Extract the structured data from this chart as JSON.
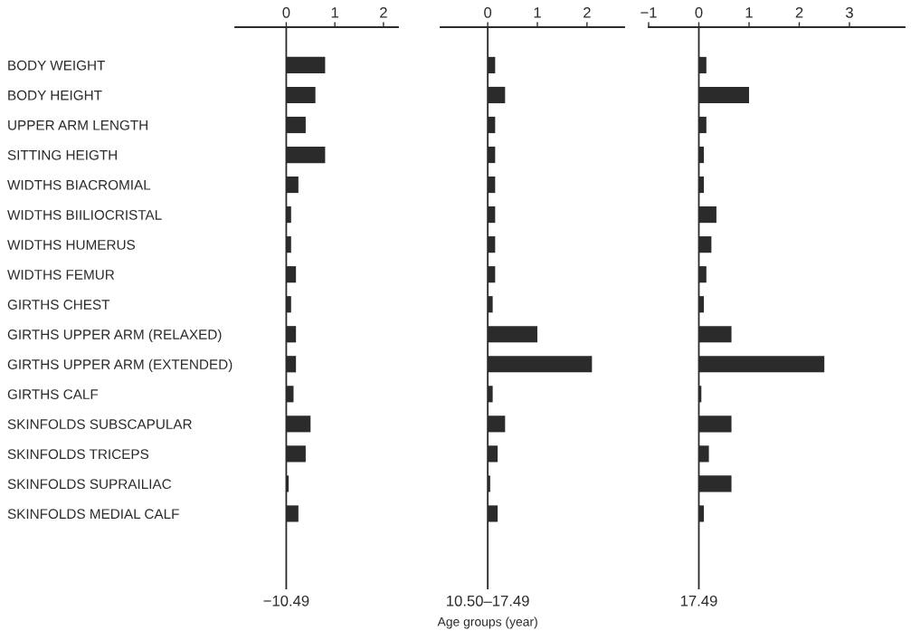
{
  "chart_data": [
    {
      "type": "bar",
      "orientation": "horizontal",
      "xlabel": "−10.49",
      "categories": [
        "BODY WEIGHT",
        "BODY HEIGHT",
        "UPPER ARM LENGTH",
        "SITTING HEIGTH",
        "WIDTHS BIACROMIAL",
        "WIDTHS BIILIOCRISTAL",
        "WIDTHS HUMERUS",
        "WIDTHS FEMUR",
        "GIRTHS CHEST",
        "GIRTHS UPPER ARM (RELAXED)",
        "GIRTHS UPPER ARM (EXTENDED)",
        "GIRTHS CALF",
        "SKINFOLDS SUBSCAPULAR",
        "SKINFOLDS TRICEPS",
        "SKINFOLDS SUPRAILIAC",
        "SKINFOLDS MEDIAL CALF"
      ],
      "values": [
        0.8,
        0.6,
        0.4,
        0.8,
        0.25,
        0.1,
        0.1,
        0.2,
        0.1,
        0.2,
        0.2,
        0.15,
        0.5,
        0.4,
        0.05,
        0.25
      ],
      "color": "#2b2b2b",
      "xlim": [
        -1.05,
        2.3
      ],
      "xticks": [
        0,
        1,
        2
      ]
    },
    {
      "type": "bar",
      "orientation": "horizontal",
      "xlabel": "10.50–17.49",
      "annotations": [
        "Age groups (year)"
      ],
      "categories": [
        null,
        null,
        null,
        null,
        null,
        null,
        null,
        null,
        null,
        null,
        null,
        null,
        null,
        null,
        null,
        null
      ],
      "values": [
        0.15,
        0.35,
        0.15,
        0.15,
        0.15,
        0.15,
        0.15,
        0.15,
        0.1,
        1.0,
        2.1,
        0.1,
        0.35,
        0.2,
        0.05,
        0.2
      ],
      "color": "#2b2b2b",
      "xlim": [
        -0.95,
        2.75
      ],
      "xticks": [
        0,
        1,
        2
      ],
      "tick_labels": "x"
    },
    {
      "type": "bar",
      "orientation": "horizontal",
      "xlabel": "17.49",
      "categories": [
        null,
        null,
        null,
        null,
        null,
        null,
        null,
        null,
        null,
        null,
        null,
        null,
        null,
        null,
        null,
        null
      ],
      "values": [
        0.15,
        1.0,
        0.15,
        0.1,
        0.1,
        0.35,
        0.25,
        0.15,
        0.1,
        0.65,
        2.5,
        0.05,
        0.65,
        0.2,
        0.65,
        0.1
      ],
      "color": "#2b2b2b",
      "xlim": [
        -1,
        4.1
      ],
      "xticks": [
        -1,
        0,
        1,
        2,
        3
      ],
      "tick_labels": "x"
    }
  ]
}
